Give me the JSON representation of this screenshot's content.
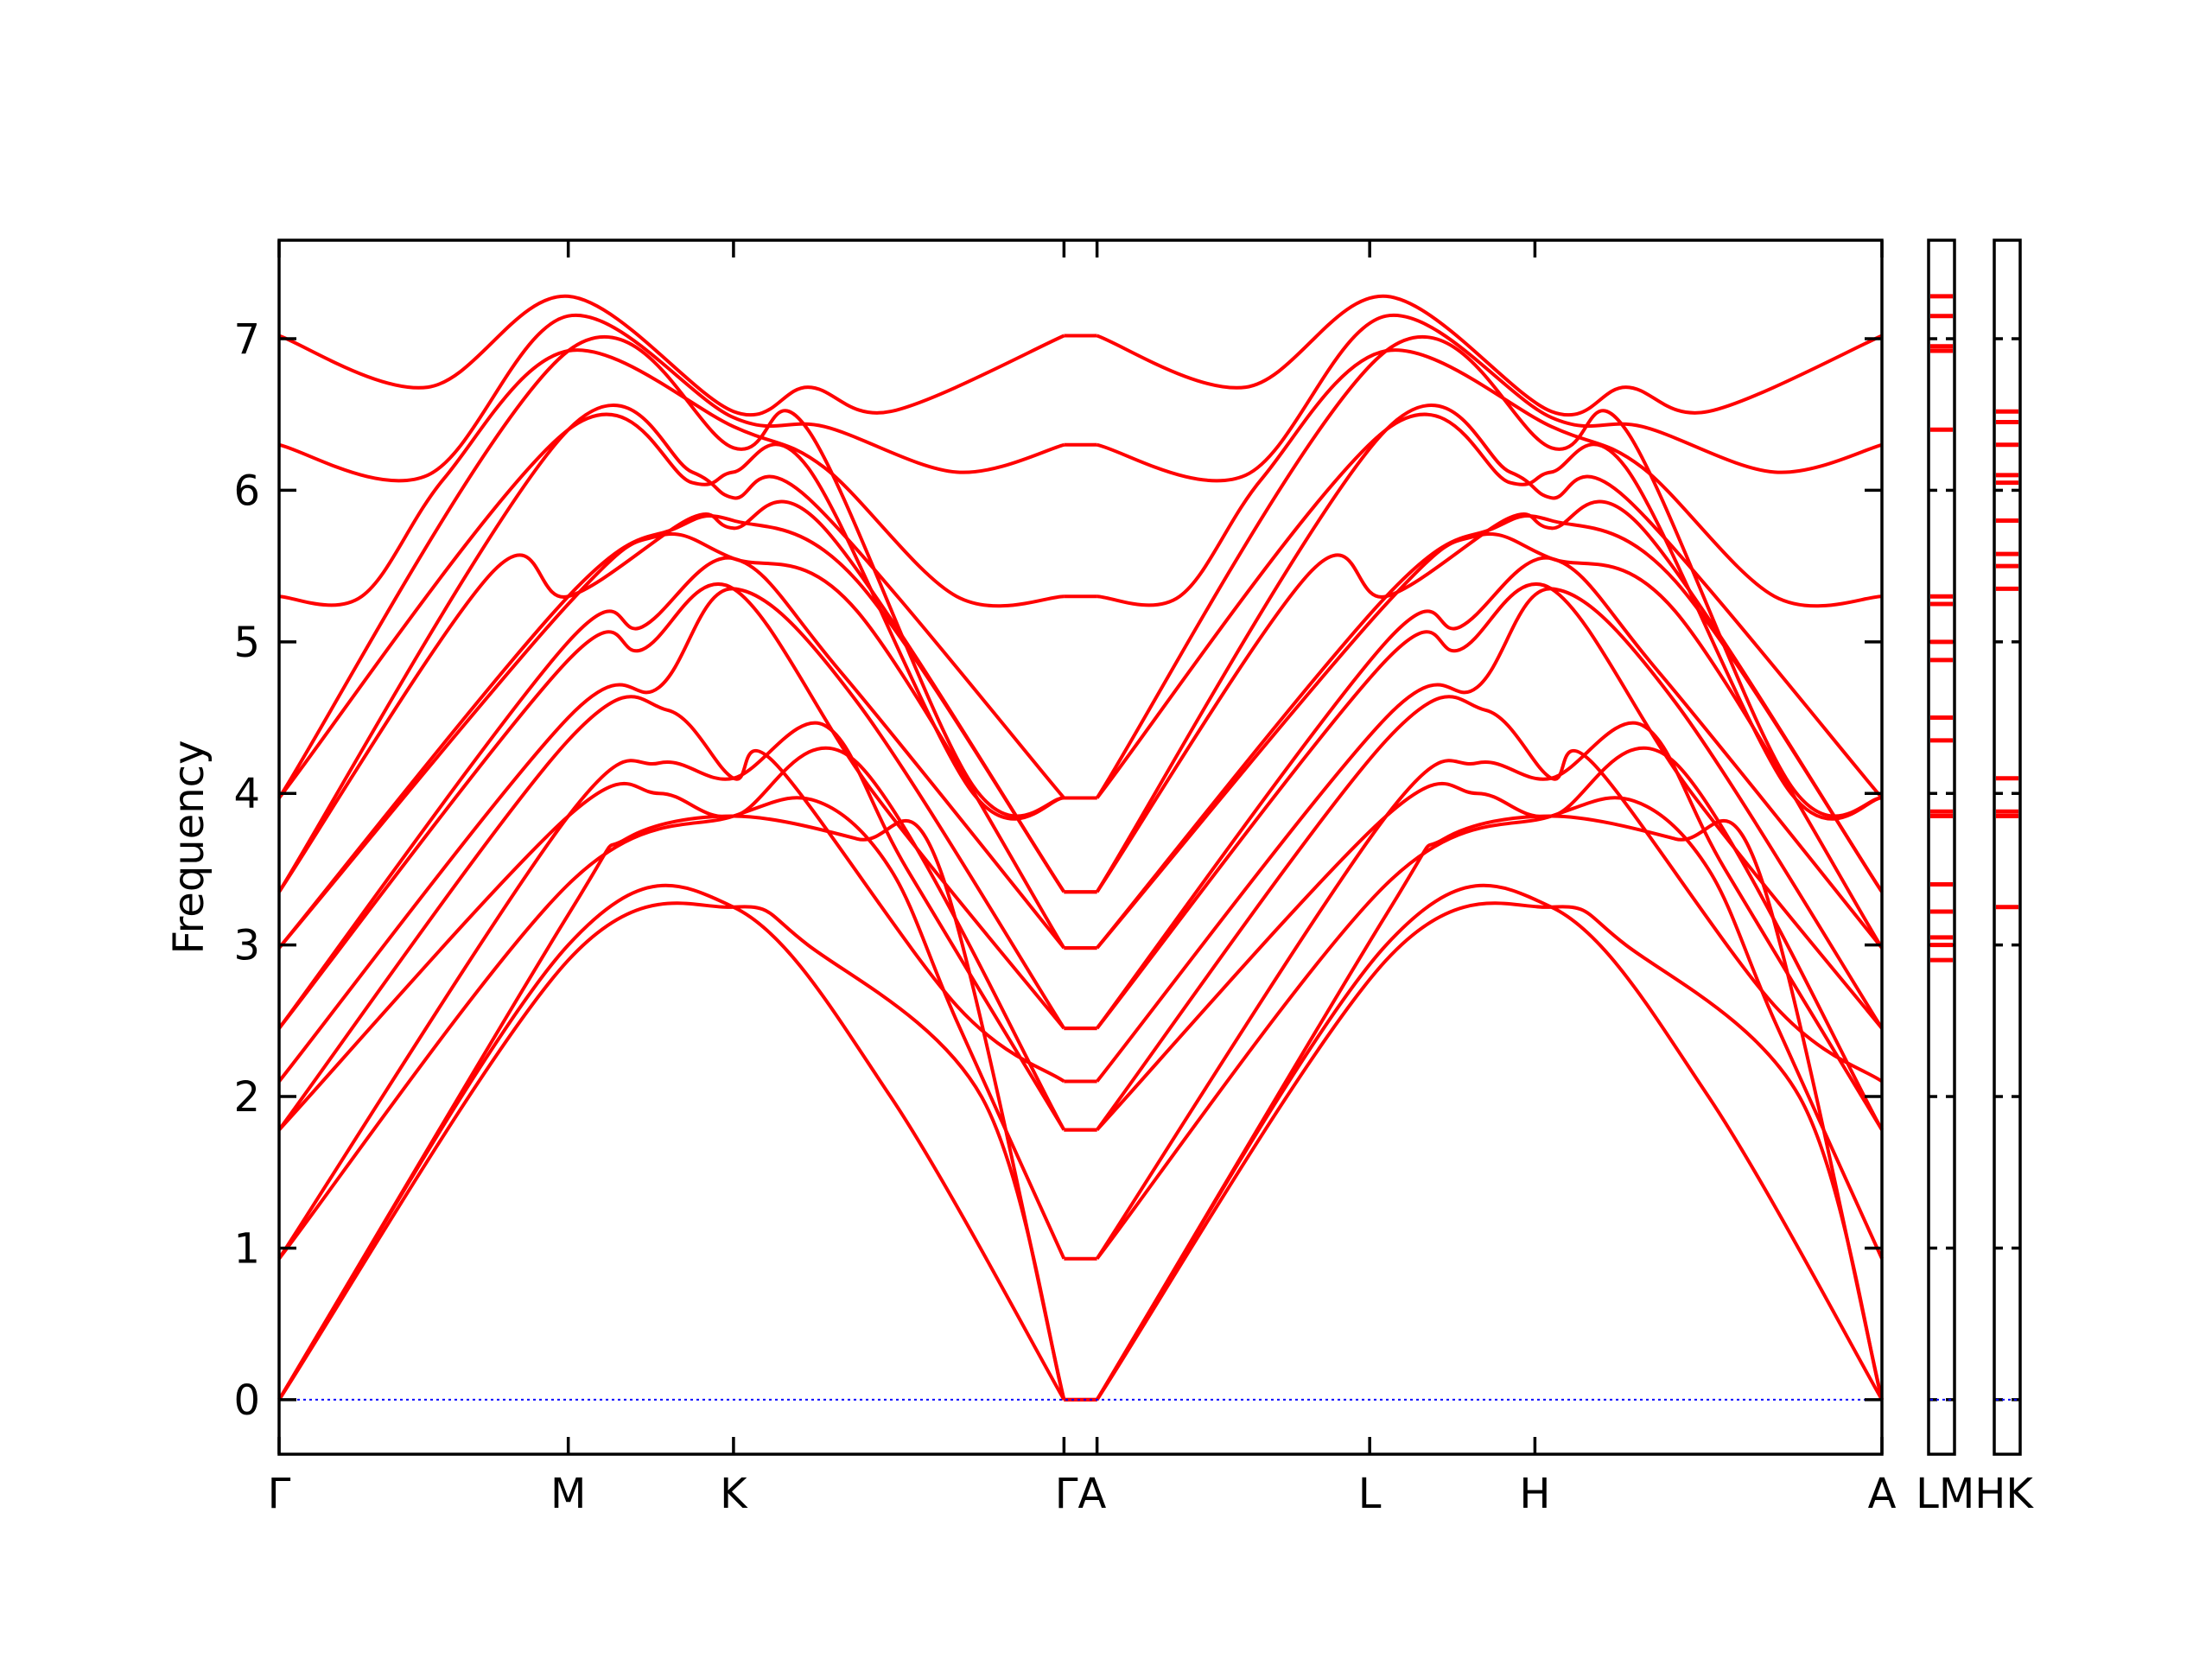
{
  "chart_data": {
    "type": "line",
    "ylabel": "Frequency",
    "ylim": [
      -0.36,
      7.65
    ],
    "yticks": [
      0,
      1,
      2,
      3,
      4,
      5,
      6,
      7
    ],
    "xlim": [
      0,
      9.7
    ],
    "grid": false,
    "path_labels": [
      {
        "label": "Γ",
        "x": 0
      },
      {
        "label": "M",
        "x": 1.75
      },
      {
        "label": "K",
        "x": 2.75
      },
      {
        "label": "ΓA",
        "x": 4.85
      },
      {
        "label": "L",
        "x": 6.6
      },
      {
        "label": "H",
        "x": 7.6
      },
      {
        "label": "A",
        "x": 9.7
      }
    ],
    "tick_positions": [
      0,
      1.75,
      2.75,
      4.75,
      4.95,
      6.6,
      7.6,
      9.7
    ],
    "bands": [
      {
        "name": "",
        "points": [
          [
            0,
            0
          ],
          [
            1.75,
            2.9
          ],
          [
            2.75,
            3.25
          ],
          [
            3.2,
            3.0
          ],
          [
            4.25,
            2.0
          ],
          [
            4.75,
            0
          ]
        ]
      },
      {
        "name": "",
        "points": [
          [
            0,
            0
          ],
          [
            1.75,
            3.0
          ],
          [
            2.75,
            3.25
          ],
          [
            3.7,
            2.0
          ],
          [
            4.75,
            0
          ]
        ]
      },
      {
        "name": "",
        "points": [
          [
            0,
            0
          ],
          [
            1.75,
            3.2
          ],
          [
            2.1,
            3.7
          ],
          [
            2.75,
            3.85
          ],
          [
            3.5,
            3.7
          ],
          [
            4.0,
            3.5
          ],
          [
            4.75,
            0
          ]
        ]
      },
      {
        "name": "",
        "points": [
          [
            0,
            0.93
          ],
          [
            1.75,
            3.4
          ],
          [
            2.75,
            3.85
          ],
          [
            3.25,
            3.95
          ],
          [
            3.7,
            3.5
          ],
          [
            4.1,
            2.5
          ],
          [
            4.75,
            0.93
          ]
        ]
      },
      {
        "name": "",
        "points": [
          [
            0,
            0.93
          ],
          [
            1.75,
            3.85
          ],
          [
            2.3,
            4.2
          ],
          [
            2.75,
            4.1
          ],
          [
            3.3,
            4.45
          ],
          [
            3.8,
            3.5
          ],
          [
            4.75,
            1.78
          ]
        ]
      },
      {
        "name": "",
        "points": [
          [
            0,
            1.78
          ],
          [
            1.75,
            3.85
          ],
          [
            2.3,
            4.0
          ],
          [
            2.75,
            3.85
          ],
          [
            3.5,
            4.2
          ],
          [
            4.75,
            1.78
          ]
        ]
      },
      {
        "name": "",
        "points": [
          [
            0,
            1.78
          ],
          [
            1.75,
            4.35
          ],
          [
            2.35,
            4.55
          ],
          [
            2.75,
            4.1
          ],
          [
            3.0,
            4.2
          ],
          [
            4.1,
            2.6
          ],
          [
            4.75,
            2.1
          ]
        ]
      },
      {
        "name": "",
        "points": [
          [
            0,
            2.1
          ],
          [
            1.75,
            4.5
          ],
          [
            2.3,
            4.7
          ],
          [
            2.75,
            5.35
          ],
          [
            3.5,
            4.6
          ],
          [
            4.75,
            2.45
          ]
        ]
      },
      {
        "name": "",
        "points": [
          [
            0,
            2.45
          ],
          [
            1.75,
            4.88
          ],
          [
            2.2,
            4.95
          ],
          [
            2.75,
            5.35
          ],
          [
            3.6,
            4.0
          ],
          [
            4.75,
            2.45
          ]
        ]
      },
      {
        "name": "",
        "points": [
          [
            0,
            2.45
          ],
          [
            1.75,
            5.0
          ],
          [
            2.2,
            5.1
          ],
          [
            2.75,
            5.55
          ],
          [
            3.4,
            4.8
          ],
          [
            4.75,
            2.98
          ]
        ]
      },
      {
        "name": "",
        "points": [
          [
            0,
            2.98
          ],
          [
            1.75,
            5.25
          ],
          [
            2.3,
            5.7
          ],
          [
            2.75,
            5.55
          ],
          [
            3.5,
            5.2
          ],
          [
            4.75,
            2.98
          ]
        ]
      },
      {
        "name": "",
        "points": [
          [
            0,
            2.98
          ],
          [
            1.75,
            5.3
          ],
          [
            2.4,
            5.75
          ],
          [
            2.75,
            5.8
          ],
          [
            3.5,
            5.4
          ],
          [
            4.75,
            3.35
          ]
        ]
      },
      {
        "name": "",
        "points": [
          [
            0,
            3.35
          ],
          [
            1.3,
            5.47
          ],
          [
            1.75,
            5.3
          ],
          [
            2.5,
            5.82
          ],
          [
            2.75,
            5.75
          ],
          [
            3.3,
            5.75
          ],
          [
            4.75,
            3.35
          ]
        ]
      },
      {
        "name": "",
        "points": [
          [
            0,
            3.35
          ],
          [
            1.75,
            6.4
          ],
          [
            2.5,
            6.12
          ],
          [
            2.75,
            5.95
          ],
          [
            3.2,
            5.95
          ],
          [
            4.75,
            3.97
          ]
        ]
      },
      {
        "name": "",
        "points": [
          [
            0,
            3.97
          ],
          [
            1.75,
            6.4
          ],
          [
            2.5,
            6.05
          ],
          [
            2.75,
            6.12
          ],
          [
            3.2,
            6.15
          ],
          [
            4.2,
            4.0
          ],
          [
            4.75,
            3.97
          ]
        ]
      },
      {
        "name": "",
        "points": [
          [
            0,
            3.97
          ],
          [
            1.75,
            6.92
          ],
          [
            2.75,
            6.28
          ],
          [
            3.2,
            6.4
          ],
          [
            4.2,
            4.05
          ],
          [
            4.75,
            3.97
          ]
        ]
      },
      {
        "name": "",
        "points": [
          [
            0,
            5.3
          ],
          [
            0.5,
            5.3
          ],
          [
            1.0,
            6.08
          ],
          [
            1.75,
            6.92
          ],
          [
            2.75,
            6.42
          ],
          [
            3.3,
            6.15
          ],
          [
            4.1,
            5.3
          ],
          [
            4.75,
            5.3
          ]
        ]
      },
      {
        "name": "",
        "points": [
          [
            0,
            6.3
          ],
          [
            0.9,
            6.1
          ],
          [
            1.75,
            7.15
          ],
          [
            2.75,
            6.48
          ],
          [
            3.3,
            6.42
          ],
          [
            4.1,
            6.12
          ],
          [
            4.75,
            6.3
          ]
        ]
      },
      {
        "name": "",
        "points": [
          [
            0,
            7.02
          ],
          [
            0.9,
            6.68
          ],
          [
            1.75,
            7.28
          ],
          [
            2.75,
            6.52
          ],
          [
            3.2,
            6.68
          ],
          [
            3.7,
            6.52
          ],
          [
            4.75,
            7.02
          ]
        ]
      }
    ],
    "dos_panels": [
      {
        "name": "LM",
        "values": [
          2.9,
          3.0,
          3.05,
          3.22,
          3.4,
          3.85,
          3.88,
          4.35,
          4.5,
          4.88,
          5.0,
          5.25,
          5.3,
          6.4,
          6.92,
          6.95,
          7.15,
          7.28,
          0
        ]
      },
      {
        "name": "HK",
        "values": [
          3.25,
          3.85,
          3.88,
          4.1,
          5.35,
          5.5,
          5.58,
          5.8,
          6.05,
          6.1,
          6.3,
          6.45,
          6.52,
          0
        ]
      }
    ],
    "dos_labels": [
      "LMHK"
    ]
  }
}
